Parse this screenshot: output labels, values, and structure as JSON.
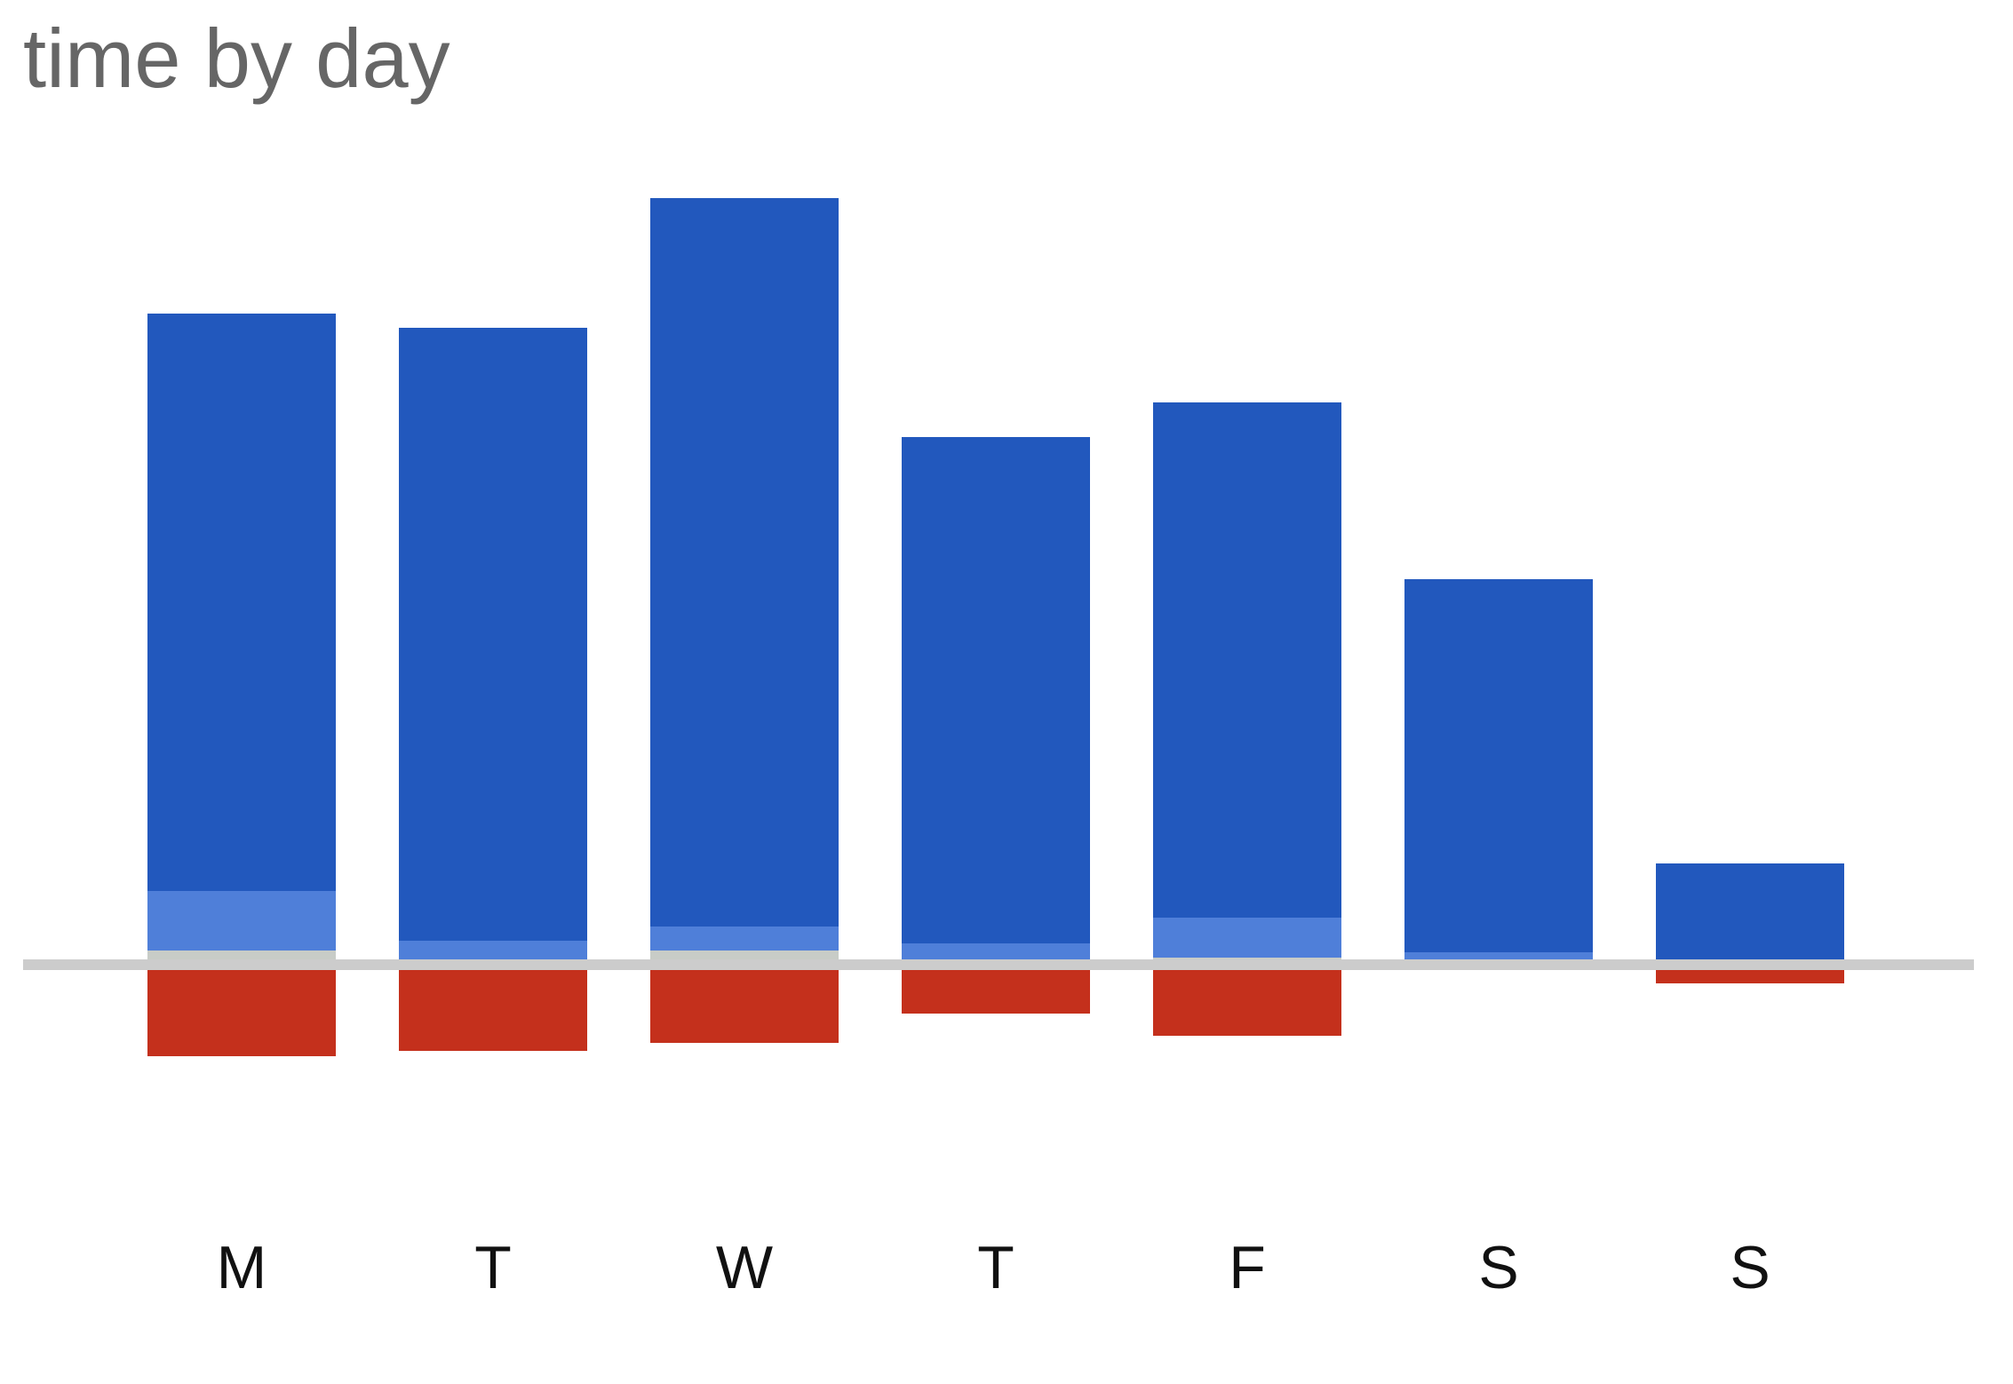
{
  "title": "time by day",
  "chart_data": {
    "type": "bar",
    "title": "time by day",
    "xlabel": "",
    "ylabel": "",
    "categories": [
      "M",
      "T",
      "W",
      "T",
      "F",
      "S",
      "S"
    ],
    "ylim": [
      -0.1,
      0.9
    ],
    "grid": false,
    "legend": "none",
    "stack_above_baseline": [
      {
        "color": "#c8ccc7",
        "values": [
          0.016,
          0.0,
          0.016,
          0.0,
          0.008,
          0.0,
          0.0
        ]
      },
      {
        "color": "#4f7fd9",
        "values": [
          0.067,
          0.027,
          0.027,
          0.024,
          0.045,
          0.014,
          0.004
        ]
      },
      {
        "color": "#2258bd",
        "values": [
          0.65,
          0.69,
          0.82,
          0.57,
          0.58,
          0.42,
          0.11
        ]
      }
    ],
    "below_baseline": {
      "color": "#c4301c",
      "values": [
        -0.103,
        -0.097,
        -0.088,
        -0.055,
        -0.08,
        0.0,
        -0.021
      ]
    },
    "baseline_color": "#cccccc"
  }
}
